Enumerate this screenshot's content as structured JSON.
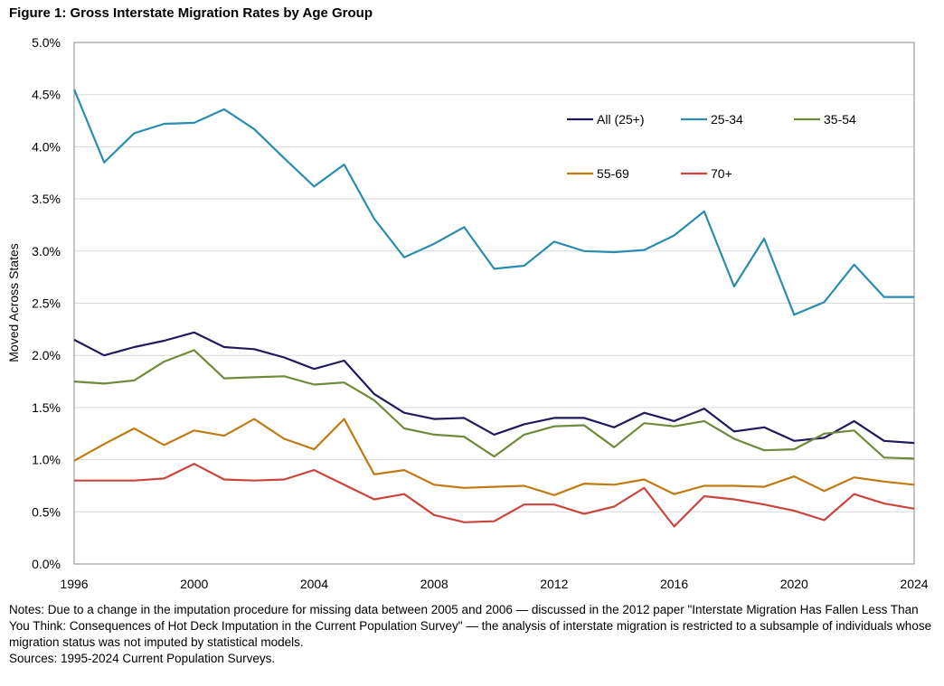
{
  "figure": {
    "title": "Figure 1: Gross Interstate Migration Rates by Age Group",
    "notes": "Notes: Due to a change in the imputation procedure for missing data between 2005 and 2006 — discussed in the 2012 paper \"Interstate Migration Has Fallen Less Than You Think: Consequences of Hot Deck Imputation in the Current Population Survey\" — the analysis of interstate migration is restricted to a subsample of individuals whose migration status was not imputed by statistical models.",
    "sources": "Sources: 1995-2024  Current Population Surveys."
  },
  "chart_data": {
    "type": "line",
    "title": "Figure 1: Gross Interstate Migration Rates by Age Group",
    "xlabel": "",
    "ylabel": "Moved Across States",
    "xlim": [
      1996,
      2024
    ],
    "ylim": [
      0.0,
      5.0
    ],
    "x_ticks": [
      1996,
      2000,
      2004,
      2008,
      2012,
      2016,
      2020,
      2024
    ],
    "y_ticks": [
      "0.0%",
      "0.5%",
      "1.0%",
      "1.5%",
      "2.0%",
      "2.5%",
      "3.0%",
      "3.5%",
      "4.0%",
      "4.5%",
      "5.0%"
    ],
    "y_tick_values": [
      0,
      0.5,
      1.0,
      1.5,
      2.0,
      2.5,
      3.0,
      3.5,
      4.0,
      4.5,
      5.0
    ],
    "grid": "horizontal",
    "legend_position": "top-right",
    "x": [
      1996,
      1997,
      1998,
      1999,
      2000,
      2001,
      2002,
      2003,
      2004,
      2005,
      2006,
      2007,
      2008,
      2009,
      2010,
      2011,
      2012,
      2013,
      2014,
      2015,
      2016,
      2017,
      2018,
      2019,
      2020,
      2021,
      2022,
      2023,
      2024
    ],
    "series": [
      {
        "name": "All (25+)",
        "color": "#1f1a5e",
        "values": [
          2.15,
          2.0,
          2.08,
          2.14,
          2.22,
          2.08,
          2.06,
          1.98,
          1.87,
          1.95,
          1.63,
          1.45,
          1.39,
          1.4,
          1.24,
          1.34,
          1.4,
          1.4,
          1.31,
          1.45,
          1.37,
          1.49,
          1.27,
          1.31,
          1.18,
          1.21,
          1.37,
          1.18,
          1.16
        ]
      },
      {
        "name": "25-34",
        "color": "#2a8db0",
        "values": [
          4.55,
          3.85,
          4.13,
          4.22,
          4.23,
          4.36,
          4.17,
          3.89,
          3.62,
          3.83,
          3.31,
          2.94,
          3.07,
          3.23,
          2.83,
          2.86,
          3.09,
          3.0,
          2.99,
          3.01,
          3.15,
          3.38,
          2.66,
          3.12,
          2.39,
          2.51,
          2.87,
          2.56,
          2.56
        ]
      },
      {
        "name": "35-54",
        "color": "#6f8a3a",
        "values": [
          1.75,
          1.73,
          1.76,
          1.94,
          2.05,
          1.78,
          1.79,
          1.8,
          1.72,
          1.74,
          1.57,
          1.3,
          1.24,
          1.22,
          1.03,
          1.24,
          1.32,
          1.33,
          1.12,
          1.35,
          1.32,
          1.37,
          1.2,
          1.09,
          1.1,
          1.25,
          1.28,
          1.02,
          1.01
        ]
      },
      {
        "name": "55-69",
        "color": "#c07a12",
        "values": [
          0.99,
          1.15,
          1.3,
          1.14,
          1.28,
          1.23,
          1.39,
          1.2,
          1.1,
          1.39,
          0.86,
          0.9,
          0.76,
          0.73,
          0.74,
          0.75,
          0.66,
          0.77,
          0.76,
          0.81,
          0.67,
          0.75,
          0.75,
          0.74,
          0.84,
          0.7,
          0.83,
          0.79,
          0.76
        ]
      },
      {
        "name": "70+",
        "color": "#c8463c",
        "values": [
          0.8,
          0.8,
          0.8,
          0.82,
          0.96,
          0.81,
          0.8,
          0.81,
          0.9,
          0.76,
          0.62,
          0.67,
          0.47,
          0.4,
          0.41,
          0.57,
          0.57,
          0.48,
          0.55,
          0.73,
          0.36,
          0.65,
          0.62,
          0.57,
          0.51,
          0.42,
          0.67,
          0.58,
          0.53
        ]
      }
    ]
  }
}
